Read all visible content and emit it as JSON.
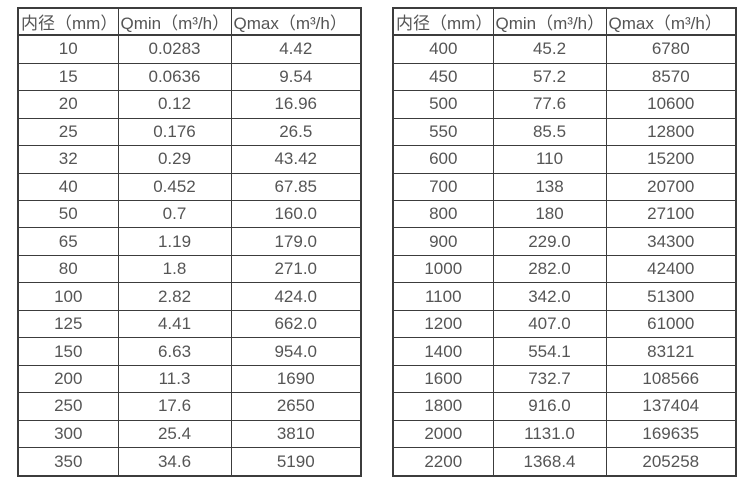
{
  "colors": {
    "background": "#ffffff",
    "border": "#3c3c3c",
    "text": "#555555"
  },
  "tables": [
    {
      "name": "small-diameters",
      "headers": [
        "内径（mm）",
        "Qmin（m³/h）",
        "Qmax（m³/h）"
      ],
      "rows": [
        [
          "10",
          "0.0283",
          "4.42"
        ],
        [
          "15",
          "0.0636",
          "9.54"
        ],
        [
          "20",
          "0.12",
          "16.96"
        ],
        [
          "25",
          "0.176",
          "26.5"
        ],
        [
          "32",
          "0.29",
          "43.42"
        ],
        [
          "40",
          "0.452",
          "67.85"
        ],
        [
          "50",
          "0.7",
          "160.0"
        ],
        [
          "65",
          "1.19",
          "179.0"
        ],
        [
          "80",
          "1.8",
          "271.0"
        ],
        [
          "100",
          "2.82",
          "424.0"
        ],
        [
          "125",
          "4.41",
          "662.0"
        ],
        [
          "150",
          "6.63",
          "954.0"
        ],
        [
          "200",
          "11.3",
          "1690"
        ],
        [
          "250",
          "17.6",
          "2650"
        ],
        [
          "300",
          "25.4",
          "3810"
        ],
        [
          "350",
          "34.6",
          "5190"
        ]
      ]
    },
    {
      "name": "large-diameters",
      "headers": [
        "内径（mm）",
        "Qmin（m³/h）",
        "Qmax（m³/h）"
      ],
      "rows": [
        [
          "400",
          "45.2",
          "6780"
        ],
        [
          "450",
          "57.2",
          "8570"
        ],
        [
          "500",
          "77.6",
          "10600"
        ],
        [
          "550",
          "85.5",
          "12800"
        ],
        [
          "600",
          "110",
          "15200"
        ],
        [
          "700",
          "138",
          "20700"
        ],
        [
          "800",
          "180",
          "27100"
        ],
        [
          "900",
          "229.0",
          "34300"
        ],
        [
          "1000",
          "282.0",
          "42400"
        ],
        [
          "1100",
          "342.0",
          "51300"
        ],
        [
          "1200",
          "407.0",
          "61000"
        ],
        [
          "1400",
          "554.1",
          "83121"
        ],
        [
          "1600",
          "732.7",
          "108566"
        ],
        [
          "1800",
          "916.0",
          "137404"
        ],
        [
          "2000",
          "1131.0",
          "169635"
        ],
        [
          "2200",
          "1368.4",
          "205258"
        ]
      ]
    }
  ]
}
